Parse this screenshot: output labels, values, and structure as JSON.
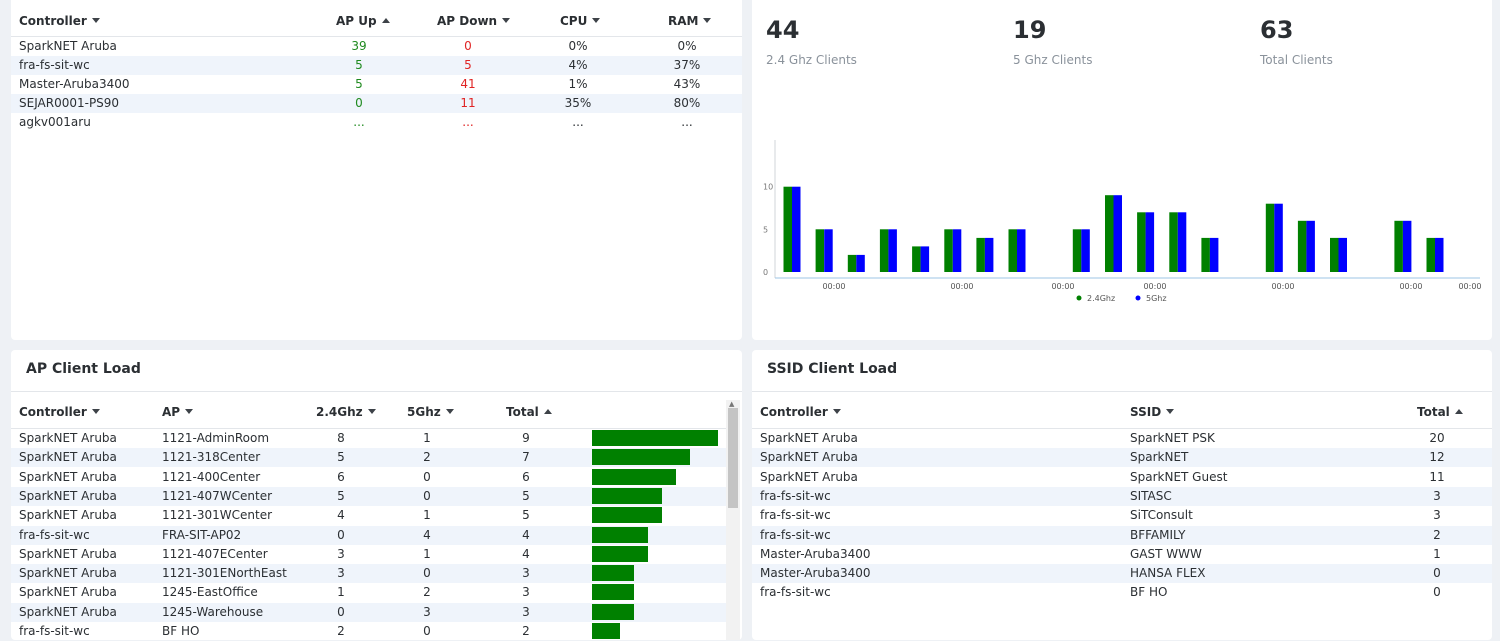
{
  "controller_table": {
    "columns": [
      {
        "label": "Controller",
        "sort": "down"
      },
      {
        "label": "AP Up",
        "sort": "up"
      },
      {
        "label": "AP Down",
        "sort": "down"
      },
      {
        "label": "CPU",
        "sort": "down"
      },
      {
        "label": "RAM",
        "sort": "down"
      }
    ],
    "rows": [
      {
        "controller": "SparkNET Aruba",
        "ap_up": "39",
        "ap_down": "0",
        "cpu": "0%",
        "ram": "0%"
      },
      {
        "controller": "fra-fs-sit-wc",
        "ap_up": "5",
        "ap_down": "5",
        "cpu": "4%",
        "ram": "37%"
      },
      {
        "controller": "Master-Aruba3400",
        "ap_up": "5",
        "ap_down": "41",
        "cpu": "1%",
        "ram": "43%"
      },
      {
        "controller": "SEJAR0001-PS90",
        "ap_up": "0",
        "ap_down": "11",
        "cpu": "35%",
        "ram": "80%"
      },
      {
        "controller": "agkv001aru",
        "ap_up": "...",
        "ap_down": "...",
        "cpu": "...",
        "ram": "..."
      }
    ]
  },
  "client_stats": [
    {
      "value": "44",
      "label": "2.4 Ghz Clients"
    },
    {
      "value": "19",
      "label": "5 Ghz Clients"
    },
    {
      "value": "63",
      "label": "Total Clients"
    }
  ],
  "chart_data": {
    "type": "bar",
    "y_ticks": [
      "0",
      "5",
      "10"
    ],
    "ylim": [
      0,
      15
    ],
    "x_tick_labels": [
      "00:00",
      "00:00",
      "00:00",
      "00:00",
      "00:00",
      "00:00",
      "00:00"
    ],
    "series": [
      {
        "name": "2.4Ghz",
        "color": "#008000",
        "values": [
          10,
          5,
          2,
          5,
          3,
          5,
          4,
          5,
          0,
          5,
          9,
          7,
          7,
          4,
          0,
          8,
          6,
          4,
          0,
          6,
          4
        ]
      },
      {
        "name": "5Ghz",
        "color": "#0000ff",
        "values": [
          10,
          5,
          2,
          5,
          3,
          5,
          4,
          5,
          0,
          5,
          9,
          7,
          7,
          4,
          0,
          8,
          6,
          4,
          0,
          6,
          4
        ]
      }
    ]
  },
  "ap_load": {
    "title": "AP Client Load",
    "columns": [
      {
        "label": "Controller",
        "sort": "down"
      },
      {
        "label": "AP",
        "sort": "down"
      },
      {
        "label": "2.4Ghz",
        "sort": "down"
      },
      {
        "label": "5Ghz",
        "sort": "down"
      },
      {
        "label": "Total",
        "sort": "up"
      }
    ],
    "bar_color": "#008000",
    "bar_max": 9,
    "rows": [
      {
        "controller": "SparkNET Aruba",
        "ap": "1121-AdminRoom",
        "g24": "8",
        "g5": "1",
        "total": "9"
      },
      {
        "controller": "SparkNET Aruba",
        "ap": "1121-318Center",
        "g24": "5",
        "g5": "2",
        "total": "7"
      },
      {
        "controller": "SparkNET Aruba",
        "ap": "1121-400Center",
        "g24": "6",
        "g5": "0",
        "total": "6"
      },
      {
        "controller": "SparkNET Aruba",
        "ap": "1121-407WCenter",
        "g24": "5",
        "g5": "0",
        "total": "5"
      },
      {
        "controller": "SparkNET Aruba",
        "ap": "1121-301WCenter",
        "g24": "4",
        "g5": "1",
        "total": "5"
      },
      {
        "controller": "fra-fs-sit-wc",
        "ap": "FRA-SIT-AP02",
        "g24": "0",
        "g5": "4",
        "total": "4"
      },
      {
        "controller": "SparkNET Aruba",
        "ap": "1121-407ECenter",
        "g24": "3",
        "g5": "1",
        "total": "4"
      },
      {
        "controller": "SparkNET Aruba",
        "ap": "1121-301ENorthEast",
        "g24": "3",
        "g5": "0",
        "total": "3"
      },
      {
        "controller": "SparkNET Aruba",
        "ap": "1245-EastOffice",
        "g24": "1",
        "g5": "2",
        "total": "3"
      },
      {
        "controller": "SparkNET Aruba",
        "ap": "1245-Warehouse",
        "g24": "0",
        "g5": "3",
        "total": "3"
      },
      {
        "controller": "fra-fs-sit-wc",
        "ap": "BF HO",
        "g24": "2",
        "g5": "0",
        "total": "2"
      }
    ]
  },
  "ssid_load": {
    "title": "SSID Client Load",
    "columns": [
      {
        "label": "Controller",
        "sort": "down"
      },
      {
        "label": "SSID",
        "sort": "down"
      },
      {
        "label": "Total",
        "sort": "up"
      }
    ],
    "rows": [
      {
        "controller": "SparkNET Aruba",
        "ssid": "SparkNET PSK",
        "total": "20"
      },
      {
        "controller": "SparkNET Aruba",
        "ssid": "SparkNET",
        "total": "12"
      },
      {
        "controller": "SparkNET Aruba",
        "ssid": "SparkNET Guest",
        "total": "11"
      },
      {
        "controller": "fra-fs-sit-wc",
        "ssid": "SITASC",
        "total": "3"
      },
      {
        "controller": "fra-fs-sit-wc",
        "ssid": "SiTConsult",
        "total": "3"
      },
      {
        "controller": "fra-fs-sit-wc",
        "ssid": "BFFAMILY",
        "total": "2"
      },
      {
        "controller": "Master-Aruba3400",
        "ssid": "GAST WWW",
        "total": "1"
      },
      {
        "controller": "Master-Aruba3400",
        "ssid": "HANSA FLEX",
        "total": "0"
      },
      {
        "controller": "fra-fs-sit-wc",
        "ssid": "BF HO",
        "total": "0"
      }
    ]
  }
}
